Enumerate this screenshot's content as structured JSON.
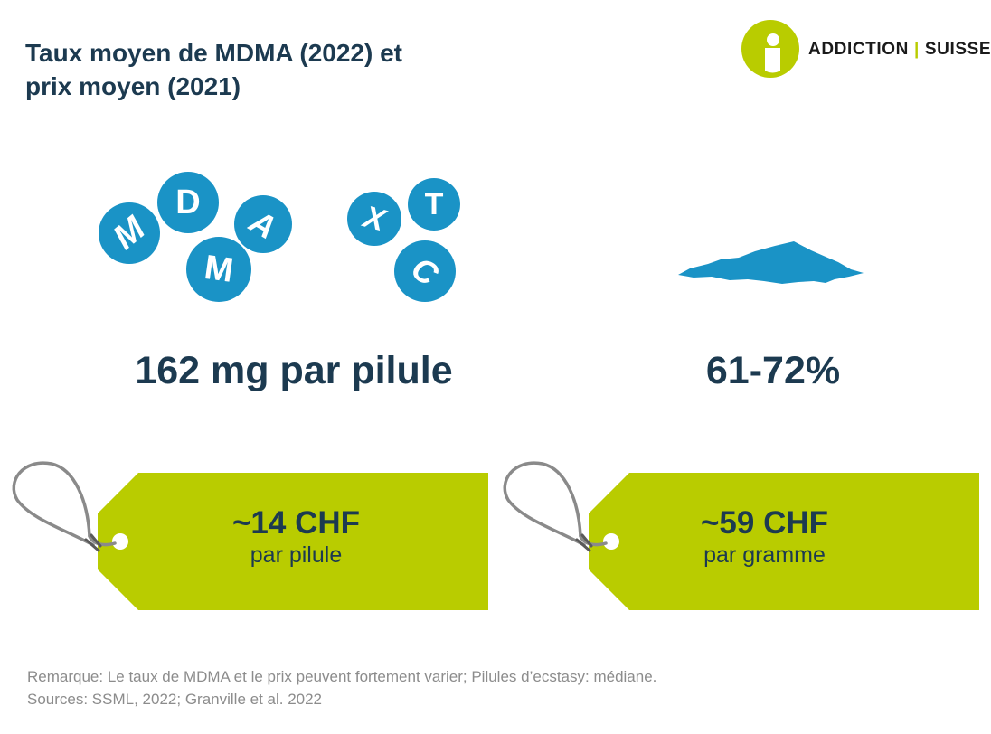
{
  "title": {
    "line1": "Taux moyen de MDMA (2022) et",
    "line2": "prix moyen (2021)"
  },
  "logo": {
    "word1": "ADDICTION",
    "word2": "SUISSE",
    "mark_icon": "person-circle-icon"
  },
  "colors": {
    "navy": "#1c3a50",
    "pill_blue": "#1a93c6",
    "tag_green": "#b9cc00",
    "string_gray": "#8a8a8a",
    "note_gray": "#8c8c8c"
  },
  "pills": {
    "group1": [
      "M",
      "D",
      "A",
      "M"
    ],
    "group2": [
      "X",
      "T",
      "C"
    ]
  },
  "powder_icon": "powder-pile-icon",
  "stats": {
    "pill_amount": "162 mg par pilule",
    "purity": "61-72%"
  },
  "tags": {
    "left": {
      "price": "~14 CHF",
      "unit": "par pilule"
    },
    "right": {
      "price": "~59 CHF",
      "unit": "par gramme"
    }
  },
  "notes": {
    "remark": "Remarque: Le taux de MDMA et le prix peuvent fortement varier; Pilules d’ecstasy: médiane.",
    "sources": "Sources: SSML, 2022; Granville et al. 2022"
  }
}
